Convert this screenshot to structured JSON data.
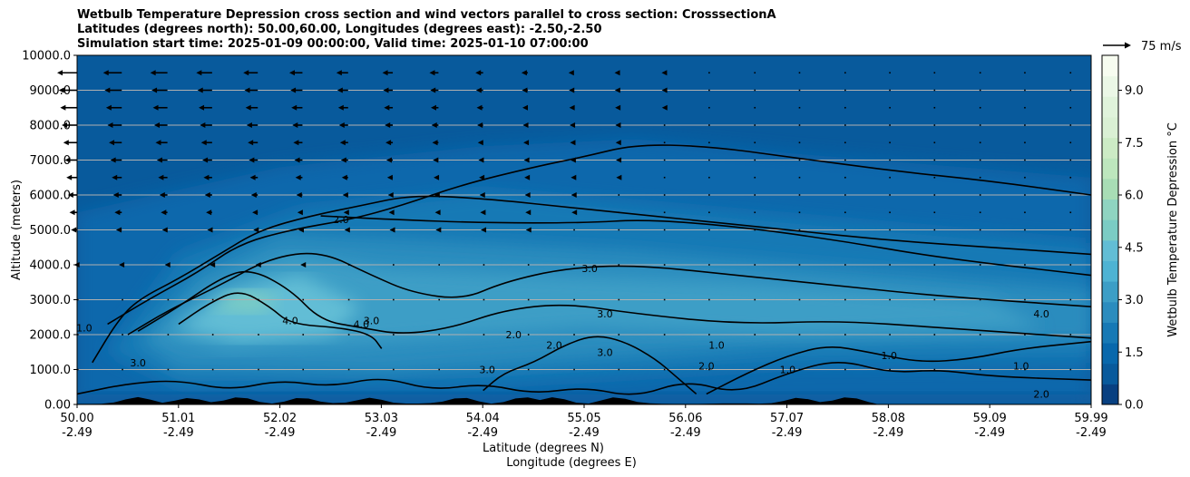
{
  "title_lines": [
    "Wetbulb Temperature Depression cross section and wind vectors parallel to cross section: CrosssectionA",
    "Latitudes (degrees north): 50.00,60.00, Longitudes (degrees east): -2.50,-2.50",
    "Simulation start time: 2025-01-09 00:00:00, Valid time: 2025-01-10 07:00:00"
  ],
  "chart_data": {
    "type": "heatmap",
    "xlabel": "Latitude (degrees N)",
    "xlabel2": "Longitude (degrees E)",
    "ylabel": "Altitude (meters)",
    "ylim": [
      0,
      10000
    ],
    "xlim": [
      50.0,
      59.99
    ],
    "x_ticks": [
      {
        "lat": "50.00",
        "lon": "-2.49"
      },
      {
        "lat": "51.01",
        "lon": "-2.49"
      },
      {
        "lat": "52.02",
        "lon": "-2.49"
      },
      {
        "lat": "53.03",
        "lon": "-2.49"
      },
      {
        "lat": "54.04",
        "lon": "-2.49"
      },
      {
        "lat": "55.05",
        "lon": "-2.49"
      },
      {
        "lat": "56.06",
        "lon": "-2.49"
      },
      {
        "lat": "57.07",
        "lon": "-2.49"
      },
      {
        "lat": "58.08",
        "lon": "-2.49"
      },
      {
        "lat": "59.09",
        "lon": "-2.49"
      },
      {
        "lat": "59.99",
        "lon": "-2.49"
      }
    ],
    "y_ticks": [
      "0.00",
      "1000.0",
      "2000.0",
      "3000.0",
      "4000.0",
      "5000.0",
      "6000.0",
      "7000.0",
      "8000.0",
      "9000.0",
      "10000.0"
    ],
    "grid": "horizontal",
    "colorbar": {
      "label": "Wetbulb Temperature Depression $^\\circ$C",
      "range": [
        0,
        10
      ],
      "ticks": [
        "0.0",
        "1.5",
        "3.0",
        "4.5",
        "6.0",
        "7.5",
        "9.0"
      ],
      "colors": [
        "#084081",
        "#085a9c",
        "#0868ac",
        "#1779b5",
        "#2b8cbe",
        "#3c9ec6",
        "#4eb3d3",
        "#62bdd5",
        "#7bccc4",
        "#8fd4c1",
        "#a8ddb5",
        "#bde6bd",
        "#ccebc5",
        "#daf0d4",
        "#e0f3db",
        "#ebf7e6",
        "#f7fcf0"
      ]
    },
    "wind_key": {
      "label": "75 m/s",
      "value": 75
    },
    "contour_labels": [
      {
        "text": "1.0",
        "x": 50.07,
        "y": 2200
      },
      {
        "text": "2.0",
        "x": 52.6,
        "y": 5300
      },
      {
        "text": "2.0",
        "x": 54.3,
        "y": 2000
      },
      {
        "text": "2.0",
        "x": 54.7,
        "y": 1700
      },
      {
        "text": "2.0",
        "x": 56.2,
        "y": 1100
      },
      {
        "text": "3.0",
        "x": 50.6,
        "y": 1200
      },
      {
        "text": "3.0",
        "x": 54.04,
        "y": 1000
      },
      {
        "text": "3.0",
        "x": 55.05,
        "y": 3900
      },
      {
        "text": "3.0",
        "x": 55.2,
        "y": 2600
      },
      {
        "text": "3.0",
        "x": 55.2,
        "y": 1500
      },
      {
        "text": "3.0",
        "x": 52.9,
        "y": 2400
      },
      {
        "text": "4.0",
        "x": 52.1,
        "y": 2400
      },
      {
        "text": "4.0",
        "x": 52.8,
        "y": 2300
      },
      {
        "text": "4.0",
        "x": 59.5,
        "y": 2600
      },
      {
        "text": "1.0",
        "x": 58.0,
        "y": 1400
      },
      {
        "text": "1.0",
        "x": 59.3,
        "y": 1100
      },
      {
        "text": "1.0",
        "x": 56.3,
        "y": 1700
      },
      {
        "text": "1.0",
        "x": 57.0,
        "y": 1000
      },
      {
        "text": "2.0",
        "x": 59.5,
        "y": 300
      }
    ],
    "contours": [
      {
        "level": 1,
        "pts": [
          [
            50.15,
            1200
          ],
          [
            50.4,
            2400
          ],
          [
            50.6,
            3000
          ],
          [
            51.0,
            3600
          ],
          [
            51.4,
            4300
          ],
          [
            51.8,
            5000
          ],
          [
            52.3,
            5400
          ],
          [
            52.8,
            5700
          ],
          [
            53.3,
            6000
          ],
          [
            54.0,
            5900
          ],
          [
            55.0,
            5600
          ],
          [
            56.0,
            5300
          ],
          [
            57.0,
            5000
          ],
          [
            58.0,
            4700
          ],
          [
            59.0,
            4500
          ],
          [
            59.99,
            4300
          ]
        ]
      },
      {
        "level": 2,
        "pts": [
          [
            50.3,
            2300
          ],
          [
            50.7,
            3000
          ],
          [
            51.2,
            3800
          ],
          [
            51.6,
            4600
          ],
          [
            52.1,
            5000
          ],
          [
            52.7,
            5300
          ],
          [
            53.2,
            5700
          ],
          [
            53.8,
            6300
          ],
          [
            54.5,
            6800
          ],
          [
            55.0,
            7100
          ],
          [
            55.5,
            7450
          ],
          [
            56.2,
            7400
          ],
          [
            57.0,
            7100
          ],
          [
            58.0,
            6700
          ],
          [
            59.0,
            6400
          ],
          [
            59.99,
            6000
          ]
        ]
      },
      {
        "level": 2,
        "pts": [
          [
            52.4,
            5400
          ],
          [
            53.1,
            5300
          ],
          [
            54.0,
            5200
          ],
          [
            55.0,
            5200
          ],
          [
            55.6,
            5300
          ],
          [
            56.5,
            5100
          ],
          [
            57.5,
            4700
          ],
          [
            58.5,
            4200
          ],
          [
            59.99,
            3700
          ]
        ]
      },
      {
        "level": 3,
        "pts": [
          [
            50.5,
            2000
          ],
          [
            50.9,
            2700
          ],
          [
            51.4,
            3400
          ],
          [
            51.9,
            4200
          ],
          [
            52.4,
            4400
          ],
          [
            52.9,
            3700
          ],
          [
            53.3,
            3200
          ],
          [
            53.8,
            3000
          ],
          [
            54.2,
            3500
          ],
          [
            54.8,
            3900
          ],
          [
            55.5,
            4000
          ],
          [
            56.5,
            3700
          ],
          [
            57.5,
            3400
          ],
          [
            58.5,
            3100
          ],
          [
            59.99,
            2800
          ]
        ]
      },
      {
        "level": 3,
        "pts": [
          [
            50.6,
            2100
          ],
          [
            51.0,
            2800
          ],
          [
            51.4,
            3600
          ],
          [
            51.7,
            3900
          ],
          [
            52.1,
            3300
          ],
          [
            52.4,
            2400
          ],
          [
            52.8,
            2200
          ],
          [
            53.2,
            2000
          ],
          [
            53.7,
            2200
          ],
          [
            54.2,
            2700
          ],
          [
            54.8,
            2900
          ],
          [
            55.5,
            2600
          ],
          [
            56.5,
            2300
          ],
          [
            57.5,
            2400
          ],
          [
            58.5,
            2200
          ],
          [
            59.99,
            1900
          ]
        ]
      },
      {
        "level": 4,
        "pts": [
          [
            51.0,
            2300
          ],
          [
            51.3,
            2900
          ],
          [
            51.6,
            3300
          ],
          [
            51.9,
            2800
          ],
          [
            52.1,
            2300
          ],
          [
            52.6,
            2200
          ],
          [
            52.9,
            2000
          ],
          [
            53.0,
            1600
          ]
        ]
      },
      {
        "level": 3,
        "pts": [
          [
            54.0,
            400
          ],
          [
            54.2,
            900
          ],
          [
            54.5,
            1200
          ],
          [
            54.8,
            1700
          ],
          [
            55.1,
            2000
          ],
          [
            55.4,
            1800
          ],
          [
            55.7,
            1300
          ],
          [
            55.9,
            800
          ],
          [
            56.1,
            300
          ]
        ]
      },
      {
        "level": 1,
        "pts": [
          [
            50.0,
            300
          ],
          [
            50.5,
            600
          ],
          [
            51.0,
            700
          ],
          [
            51.5,
            400
          ],
          [
            52.0,
            700
          ],
          [
            52.5,
            500
          ],
          [
            53.0,
            800
          ],
          [
            53.5,
            400
          ],
          [
            54.0,
            600
          ],
          [
            54.5,
            300
          ],
          [
            55.0,
            500
          ],
          [
            55.5,
            200
          ],
          [
            56.0,
            700
          ],
          [
            56.5,
            300
          ],
          [
            57.0,
            900
          ],
          [
            57.5,
            1300
          ],
          [
            58.0,
            900
          ],
          [
            58.5,
            1000
          ],
          [
            59.0,
            800
          ],
          [
            59.99,
            700
          ]
        ]
      },
      {
        "level": 2,
        "pts": [
          [
            56.2,
            300
          ],
          [
            56.6,
            900
          ],
          [
            57.0,
            1400
          ],
          [
            57.4,
            1700
          ],
          [
            57.8,
            1500
          ],
          [
            58.3,
            1200
          ],
          [
            58.8,
            1300
          ],
          [
            59.3,
            1600
          ],
          [
            59.99,
            1800
          ]
        ]
      }
    ],
    "wind_rows_m": [
      1000,
      2000,
      3000,
      4000,
      5000,
      5500,
      6000,
      6500,
      7000,
      7500,
      8000,
      8500,
      9000,
      9500
    ],
    "wind_cols_deg": [
      50.0,
      50.44,
      50.89,
      51.33,
      51.78,
      52.22,
      52.67,
      53.11,
      53.56,
      54.0,
      54.44,
      54.89,
      55.33,
      55.78,
      56.22,
      56.67,
      57.11,
      57.56,
      58.0,
      58.44,
      58.89,
      59.33,
      59.78
    ],
    "wind_direction": "westward (towards south), strongest upper-left",
    "terrain_peaks_deg": [
      50.6,
      51.1,
      51.6,
      52.2,
      52.9,
      53.8,
      54.4,
      54.7,
      55.3,
      57.1,
      57.6
    ]
  }
}
